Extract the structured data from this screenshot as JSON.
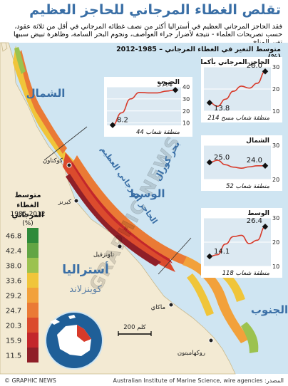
{
  "title": "تقلص الغطاء المرجاني للحاجز العظيم",
  "intro": "فقد الحاجز المرجاني العظيم في أستراليا أكثر من نصف غطائه المرجاني في أقل من ثلاثة عقود، حسب تصريحات العلماء - نتيجة لأضرار جراء العواصف، ونجوم البحر السامة، وظاهرة تبيض سببها تغير المناخ",
  "panel_title": "متوسط التغير في الغطاء المرجاني – 1985-2012 (%)",
  "legend": {
    "title": "متوسط الغطاء المرجاني",
    "years": "1985-2012",
    "unit": "(%)",
    "values": [
      "46.8",
      "42.4",
      "38.0",
      "33.6",
      "29.2",
      "24.7",
      "20.3",
      "15.9",
      "11.5"
    ],
    "colors": [
      "#2f8a3a",
      "#62a544",
      "#9cc24f",
      "#f0c53a",
      "#f2a13b",
      "#ea7a35",
      "#db4b2d",
      "#c3272b",
      "#8f1f28"
    ]
  },
  "map_labels": {
    "north": "الشمال",
    "central": "الوسط",
    "south": "الجنوب",
    "coral_sea": "بحر كورال",
    "reef": "الحاجز المرجاني العظيم",
    "australia": "أستراليا",
    "queensland": "كوينزلاند",
    "cooktown": "كوكتاون",
    "cairns": "كيرنز",
    "townsville": "تاونزفيل",
    "mackay": "ماكاي",
    "rockhampton": "روكهامبتون",
    "scale": "200 كلم"
  },
  "watermark": "GRAPHIC NEWS",
  "credit_left": "© GRAPHIC NEWS",
  "credit_right": "المصدر: Australian Institute of Marine Science, wire agencies",
  "charts": [
    {
      "title": "الحاجز المرجاني بأكمله",
      "footer": "214 منطقة شعاب مسح",
      "start_value": "13.8",
      "end_value": "28.0",
      "ticks": [
        "30",
        "20",
        "10"
      ],
      "ylim": [
        10,
        30
      ],
      "points": [
        13.8,
        12.2,
        15.4,
        19.0,
        21.3,
        20.4,
        22.6,
        28.0
      ]
    },
    {
      "title": "الشمال",
      "footer": "52 منطقة شعاب",
      "start_value": "25.0",
      "end_value": "24.0",
      "ticks": [
        "30",
        "20"
      ],
      "ylim": [
        20,
        30
      ],
      "points": [
        25.0,
        25.6,
        24.3,
        23.6,
        23.3,
        23.7,
        24.0,
        24.0
      ]
    },
    {
      "title": "الوسط",
      "footer": "118 منطقة شعاب",
      "start_value": "14.1",
      "end_value": "26.4",
      "ticks": [
        "30",
        "20",
        "10"
      ],
      "ylim": [
        10,
        30
      ],
      "points": [
        14.1,
        14.8,
        19.2,
        22.3,
        22.8,
        19.4,
        20.8,
        26.4
      ]
    },
    {
      "title": "الجنوب",
      "footer": "44 منطقة شعاب",
      "start_value": "8.2",
      "end_value": "37.4",
      "ticks": [
        "40",
        "30",
        "20",
        "10"
      ],
      "ylim": [
        8,
        40
      ],
      "points": [
        8.2,
        18.4,
        30.0,
        35.4,
        35.0,
        35.0,
        36.5,
        37.4
      ]
    }
  ]
}
